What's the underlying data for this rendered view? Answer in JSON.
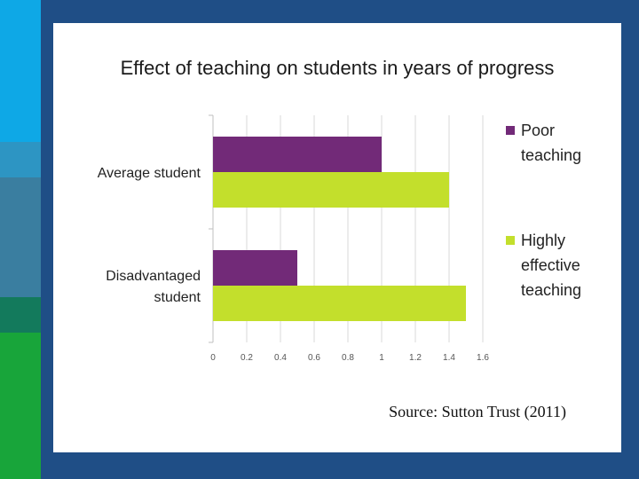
{
  "colors": {
    "background": "#1f4e86",
    "panel": "#ffffff",
    "poor": "#722a78",
    "effective": "#c3df2c",
    "stripes": [
      "#0ea8e6",
      "#2d95c3",
      "#3a7ea0",
      "#137a5c",
      "#18a53a"
    ]
  },
  "chart_data": {
    "type": "bar",
    "orientation": "horizontal",
    "title": "Effect of teaching on students in years of progress",
    "categories": [
      "Average student",
      "Disadvantaged student"
    ],
    "series": [
      {
        "name": "Poor teaching",
        "values": [
          1.0,
          0.5
        ]
      },
      {
        "name": "Highly effective teaching",
        "values": [
          1.4,
          1.5
        ]
      }
    ],
    "xlim": [
      0,
      1.6
    ],
    "xticks": [
      "0",
      "0.2",
      "0.4",
      "0.6",
      "0.8",
      "1",
      "1.2",
      "1.4",
      "1.6"
    ],
    "grid": "vertical",
    "legend": "right"
  },
  "source": "Source: Sutton Trust (2011)"
}
